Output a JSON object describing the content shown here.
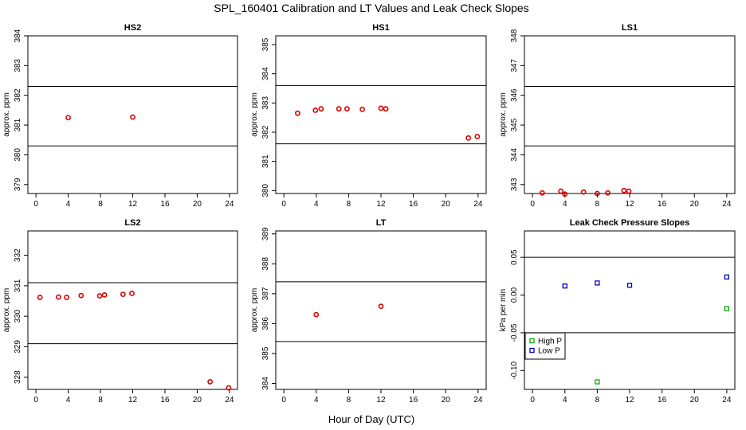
{
  "chart_data": {
    "type": "scatter",
    "title": "SPL_160401  Calibration and LT Values and Leak Check Slopes",
    "xlabel": "Hour of Day (UTC)",
    "panels": [
      {
        "title": "HS2",
        "ylabel": "approx. ppm",
        "xlim": [
          -1,
          25
        ],
        "ylim": [
          378.7,
          384
        ],
        "yticks": [
          379,
          380,
          381,
          382,
          383,
          384
        ],
        "hlines": [
          380.3,
          382.3
        ],
        "series": [
          {
            "name": "values",
            "color": "#dd0000",
            "marker": "circle",
            "x": [
              4.0,
              12.0
            ],
            "y": [
              381.25,
              381.27
            ]
          }
        ]
      },
      {
        "title": "HS1",
        "ylabel": "approx. ppm",
        "xlim": [
          -1,
          25
        ],
        "ylim": [
          379.9,
          385.3
        ],
        "yticks": [
          380,
          381,
          382,
          383,
          384,
          385
        ],
        "hlines": [
          381.6,
          383.6
        ],
        "series": [
          {
            "name": "values",
            "color": "#dd0000",
            "marker": "circle",
            "x": [
              1.7,
              3.9,
              4.6,
              6.8,
              7.8,
              9.7,
              12.0,
              12.6,
              22.8,
              23.9
            ],
            "y": [
              382.65,
              382.75,
              382.8,
              382.8,
              382.8,
              382.78,
              382.82,
              382.8,
              381.8,
              381.85
            ]
          }
        ]
      },
      {
        "title": "LS1",
        "ylabel": "approx. ppm",
        "xlim": [
          -1,
          25
        ],
        "ylim": [
          342.7,
          348
        ],
        "yticks": [
          343,
          344,
          345,
          346,
          347,
          348
        ],
        "hlines": [
          344.3,
          346.3
        ],
        "series": [
          {
            "name": "values",
            "color": "#dd0000",
            "marker": "circle",
            "x": [
              1.2,
              3.5,
              4.0,
              6.3,
              8.0,
              9.3,
              11.3,
              11.9
            ],
            "y": [
              342.72,
              342.78,
              342.68,
              342.75,
              342.7,
              342.72,
              342.8,
              342.78
            ]
          }
        ]
      },
      {
        "title": "LS2",
        "ylabel": "approx. ppm",
        "xlim": [
          -1,
          25
        ],
        "ylim": [
          327.6,
          332.8
        ],
        "yticks": [
          328,
          329,
          330,
          331,
          332
        ],
        "hlines": [
          329.1,
          331.1
        ],
        "series": [
          {
            "name": "values",
            "color": "#dd0000",
            "marker": "circle",
            "x": [
              0.5,
              2.8,
              3.8,
              5.6,
              7.9,
              8.5,
              10.8,
              11.9,
              21.6,
              23.9
            ],
            "y": [
              330.62,
              330.63,
              330.62,
              330.68,
              330.67,
              330.7,
              330.72,
              330.75,
              327.85,
              327.65
            ]
          }
        ]
      },
      {
        "title": "LT",
        "ylabel": "approx. ppm",
        "xlim": [
          -1,
          25
        ],
        "ylim": [
          383.8,
          389.1
        ],
        "yticks": [
          384,
          385,
          386,
          387,
          388,
          389
        ],
        "hlines": [
          385.4,
          387.4
        ],
        "series": [
          {
            "name": "values",
            "color": "#dd0000",
            "marker": "circle",
            "x": [
              4.0,
              12.0
            ],
            "y": [
              386.3,
              386.58
            ]
          }
        ]
      },
      {
        "title": "Leak Check Pressure Slopes",
        "ylabel": "kPa per min",
        "xlim": [
          -1,
          25
        ],
        "ylim": [
          -0.125,
          0.085
        ],
        "yticks": [
          -0.1,
          -0.05,
          0.0,
          0.05
        ],
        "yticklabels": [
          "-0.10",
          "-0.05",
          "0.00",
          "0.05"
        ],
        "hlines": [
          -0.05,
          0.05
        ],
        "series": [
          {
            "name": "High P",
            "color": "#00aa00",
            "marker": "square",
            "x": [
              8.0,
              24.0
            ],
            "y": [
              -0.115,
              -0.018
            ]
          },
          {
            "name": "Low P",
            "color": "#0000cc",
            "marker": "square",
            "x": [
              4.0,
              8.0,
              12.0,
              24.0
            ],
            "y": [
              0.012,
              0.016,
              0.013,
              0.024
            ]
          }
        ],
        "legend": {
          "placement": "bottom-left",
          "entries": [
            "High P",
            "Low P"
          ]
        }
      }
    ],
    "xticks": [
      0,
      4,
      8,
      12,
      16,
      20,
      24
    ]
  }
}
